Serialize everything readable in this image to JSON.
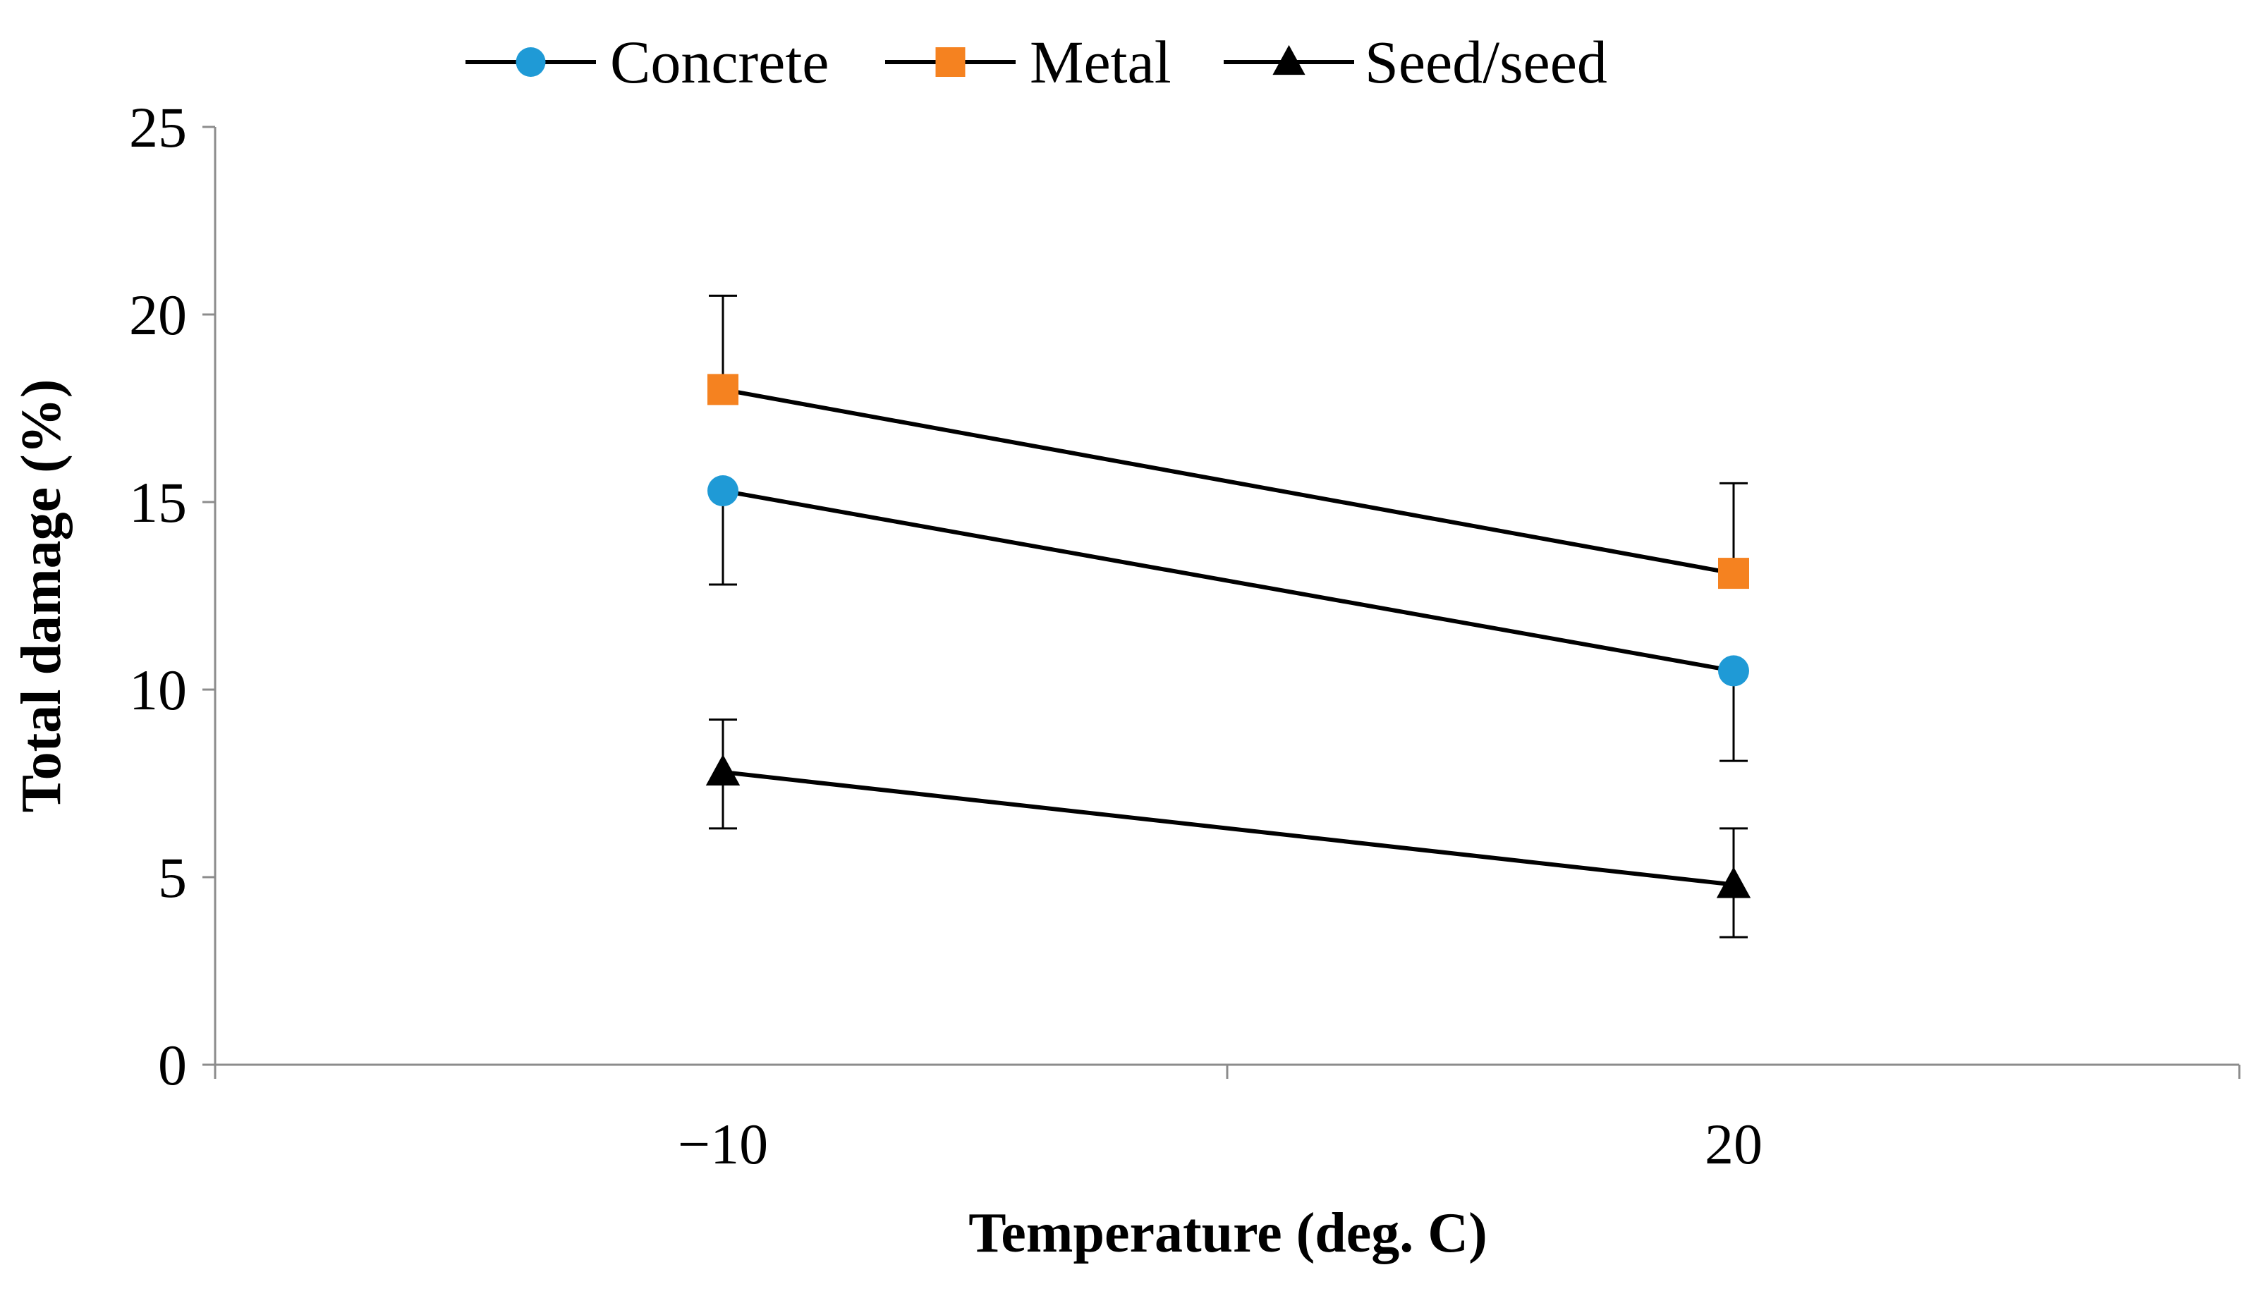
{
  "chart_data": {
    "type": "line",
    "title": "",
    "xlabel": "Temperature (deg. C)",
    "ylabel": "Total damage (%)",
    "categories": [
      "−10",
      "20"
    ],
    "ylim": [
      0,
      25
    ],
    "yticks": [
      0,
      5,
      10,
      15,
      20,
      25
    ],
    "grid": false,
    "legend_position": "top",
    "series": [
      {
        "name": "Concrete",
        "marker": "circle",
        "color": "#1f9ad6",
        "values": [
          15.3,
          10.5
        ],
        "error_low": [
          12.8,
          8.1
        ],
        "error_high": [
          null,
          null
        ]
      },
      {
        "name": "Metal",
        "marker": "square",
        "color": "#f58220",
        "values": [
          18.0,
          13.1
        ],
        "error_low": [
          null,
          null
        ],
        "error_high": [
          20.5,
          15.5
        ]
      },
      {
        "name": "Seed/seed",
        "marker": "triangle",
        "color": "#000000",
        "values": [
          7.8,
          4.8
        ],
        "error_low": [
          6.3,
          3.4
        ],
        "error_high": [
          9.2,
          6.3
        ]
      }
    ]
  }
}
